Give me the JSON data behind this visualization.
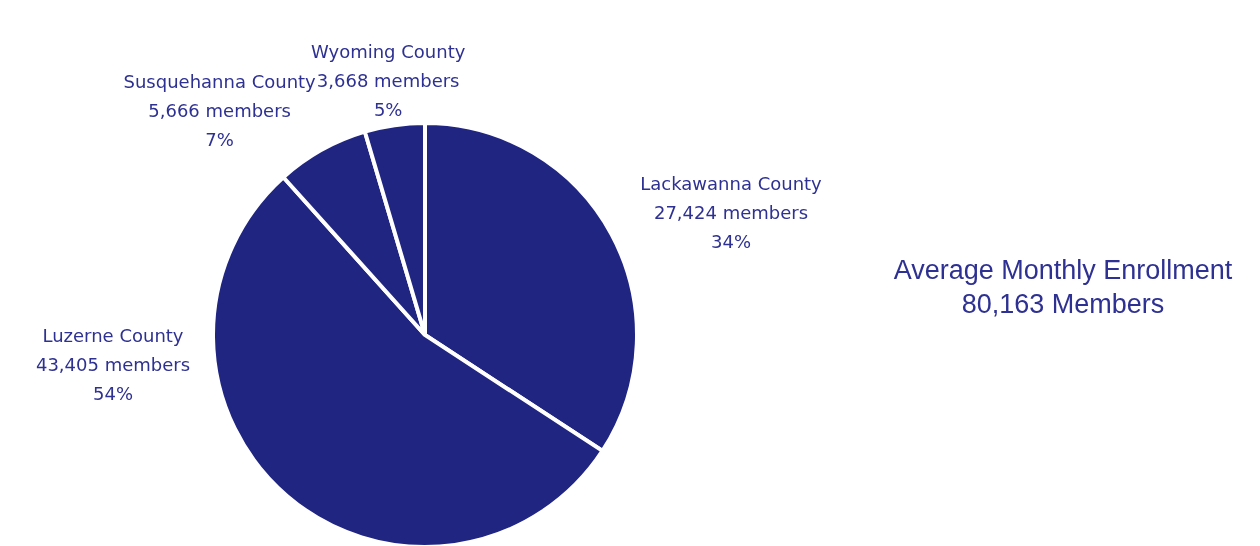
{
  "chart_data": {
    "type": "pie",
    "title": "Average Monthly Enrollment",
    "subtitle": "80,163 Members",
    "categories": [
      "Lackawanna County",
      "Luzerne County",
      "Susquehanna County",
      "Wyoming County"
    ],
    "values": [
      27424,
      43405,
      5666,
      3668
    ],
    "value_labels": [
      "27,424 members\n34%",
      "43,405 members\n54%",
      "5,666 members\n7%",
      "3,668 members\n5%"
    ],
    "colors": [
      "#1f2580",
      "#1f2580",
      "#1f2580",
      "#1f2580"
    ],
    "legend": false
  }
}
